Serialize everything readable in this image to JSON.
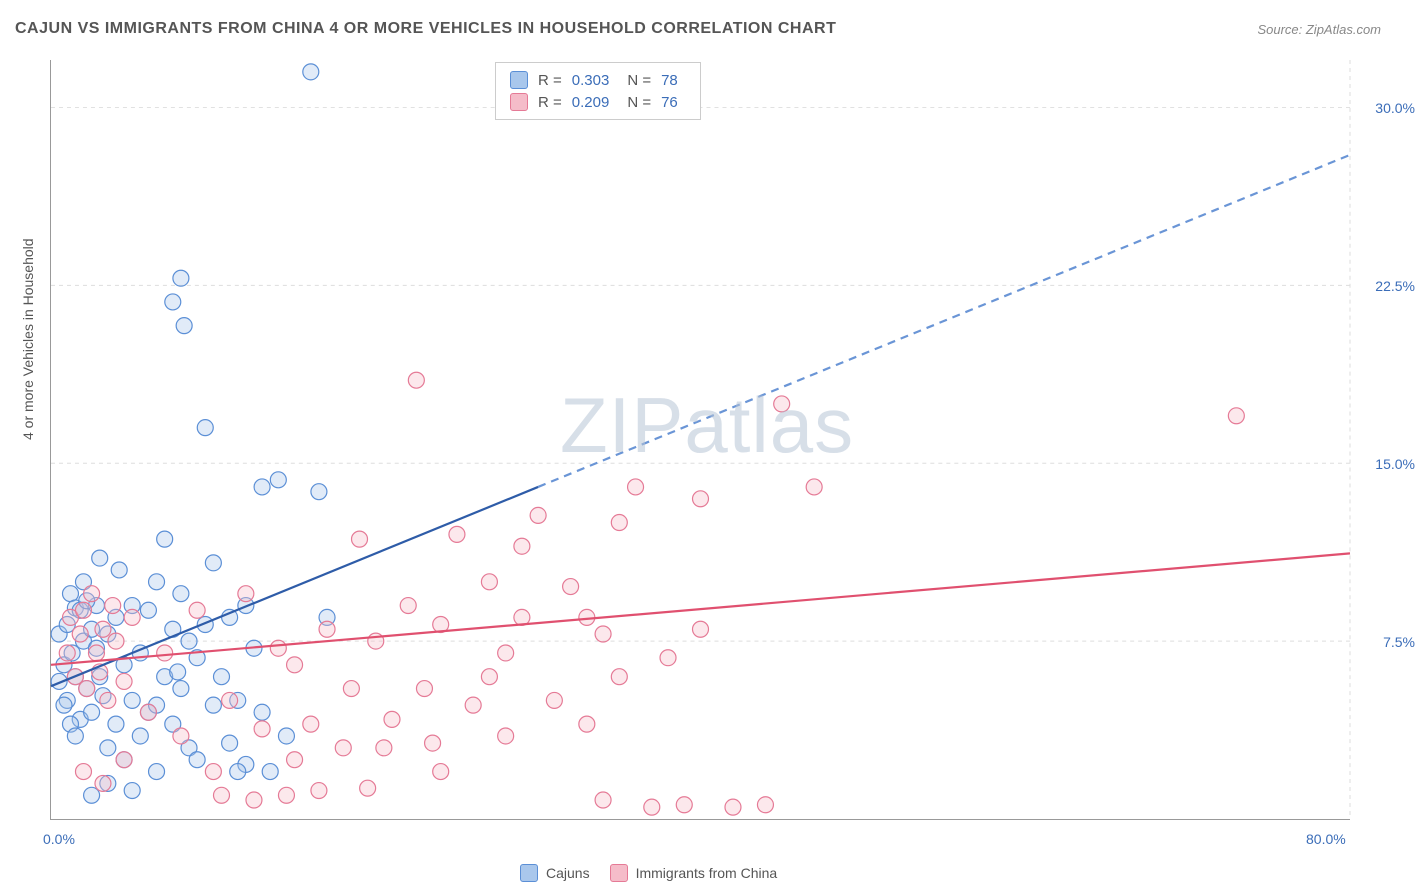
{
  "title": "CAJUN VS IMMIGRANTS FROM CHINA 4 OR MORE VEHICLES IN HOUSEHOLD CORRELATION CHART",
  "source": "Source: ZipAtlas.com",
  "watermark": "ZIPatlas",
  "y_axis_label": "4 or more Vehicles in Household",
  "chart": {
    "type": "scatter",
    "xlim": [
      0,
      80
    ],
    "ylim": [
      0,
      32
    ],
    "x_ticks": [
      {
        "v": 0,
        "l": "0.0%"
      },
      {
        "v": 80,
        "l": "80.0%"
      }
    ],
    "y_ticks": [
      {
        "v": 7.5,
        "l": "7.5%"
      },
      {
        "v": 15,
        "l": "15.0%"
      },
      {
        "v": 22.5,
        "l": "22.5%"
      },
      {
        "v": 30,
        "l": "30.0%"
      }
    ],
    "grid_v_at": [
      80
    ],
    "grid_h_at": [
      7.5,
      15,
      22.5,
      30
    ],
    "background_color": "#ffffff",
    "grid_color": "#dddddd",
    "axis_color": "#999999",
    "tick_label_color": "#3b6db8",
    "marker_radius": 8,
    "marker_stroke_width": 1.2,
    "marker_fill_opacity": 0.35,
    "series": [
      {
        "name": "Cajuns",
        "color_fill": "#a9c7ec",
        "color_stroke": "#5b8fd6",
        "R": "0.303",
        "N": "78",
        "trend": {
          "x1": 0,
          "y1": 5.6,
          "x2": 30,
          "y2": 14.0,
          "x2_ext": 80,
          "y2_ext": 28.0,
          "solid_color": "#2e5ca8",
          "dash_color": "#6a95d6",
          "width": 2.2
        },
        "points": [
          [
            0.5,
            7.8
          ],
          [
            0.8,
            6.5
          ],
          [
            1.0,
            8.2
          ],
          [
            1.0,
            5.0
          ],
          [
            1.2,
            9.5
          ],
          [
            1.3,
            7.0
          ],
          [
            1.5,
            6.0
          ],
          [
            1.5,
            8.9
          ],
          [
            1.8,
            4.2
          ],
          [
            2.0,
            7.5
          ],
          [
            2.0,
            10.0
          ],
          [
            2.2,
            5.5
          ],
          [
            2.5,
            8.0
          ],
          [
            2.5,
            4.5
          ],
          [
            2.8,
            9.0
          ],
          [
            3.0,
            6.0
          ],
          [
            3.0,
            11.0
          ],
          [
            3.2,
            5.2
          ],
          [
            3.5,
            7.8
          ],
          [
            3.5,
            3.0
          ],
          [
            4.0,
            8.5
          ],
          [
            4.0,
            4.0
          ],
          [
            4.2,
            10.5
          ],
          [
            4.5,
            6.5
          ],
          [
            4.5,
            2.5
          ],
          [
            5.0,
            9.0
          ],
          [
            5.0,
            5.0
          ],
          [
            5.5,
            7.0
          ],
          [
            5.5,
            3.5
          ],
          [
            6.0,
            8.8
          ],
          [
            6.0,
            4.5
          ],
          [
            6.5,
            10.0
          ],
          [
            6.5,
            2.0
          ],
          [
            7.0,
            6.0
          ],
          [
            7.0,
            11.8
          ],
          [
            7.5,
            4.0
          ],
          [
            7.5,
            8.0
          ],
          [
            8.0,
            5.5
          ],
          [
            8.0,
            9.5
          ],
          [
            8.5,
            3.0
          ],
          [
            8.5,
            7.5
          ],
          [
            9.0,
            6.8
          ],
          [
            9.0,
            2.5
          ],
          [
            9.5,
            8.2
          ],
          [
            10.0,
            4.8
          ],
          [
            10.0,
            10.8
          ],
          [
            10.5,
            6.0
          ],
          [
            11.0,
            3.2
          ],
          [
            11.0,
            8.5
          ],
          [
            11.5,
            5.0
          ],
          [
            12.0,
            9.0
          ],
          [
            12.0,
            2.3
          ],
          [
            12.5,
            7.2
          ],
          [
            13.0,
            4.5
          ],
          [
            13.0,
            14.0
          ],
          [
            7.5,
            21.8
          ],
          [
            8.0,
            22.8
          ],
          [
            8.2,
            20.8
          ],
          [
            9.5,
            16.5
          ],
          [
            14.0,
            14.3
          ],
          [
            16.0,
            31.5
          ],
          [
            16.5,
            13.8
          ],
          [
            17.0,
            8.5
          ],
          [
            3.5,
            1.5
          ],
          [
            5.0,
            1.2
          ],
          [
            2.5,
            1.0
          ],
          [
            1.8,
            8.8
          ],
          [
            2.2,
            9.2
          ],
          [
            2.8,
            7.2
          ],
          [
            0.8,
            4.8
          ],
          [
            1.2,
            4.0
          ],
          [
            0.5,
            5.8
          ],
          [
            1.5,
            3.5
          ],
          [
            11.5,
            2.0
          ],
          [
            13.5,
            2.0
          ],
          [
            14.5,
            3.5
          ],
          [
            6.5,
            4.8
          ],
          [
            7.8,
            6.2
          ]
        ]
      },
      {
        "name": "Immigrants from China",
        "color_fill": "#f5bcc9",
        "color_stroke": "#e57a96",
        "R": "0.209",
        "N": "76",
        "trend": {
          "x1": 0,
          "y1": 6.5,
          "x2": 80,
          "y2": 11.2,
          "solid_color": "#e0506f",
          "width": 2.2
        },
        "points": [
          [
            1.0,
            7.0
          ],
          [
            1.2,
            8.5
          ],
          [
            1.5,
            6.0
          ],
          [
            1.8,
            7.8
          ],
          [
            2.0,
            8.8
          ],
          [
            2.2,
            5.5
          ],
          [
            2.5,
            9.5
          ],
          [
            2.8,
            7.0
          ],
          [
            3.0,
            6.2
          ],
          [
            3.2,
            8.0
          ],
          [
            3.5,
            5.0
          ],
          [
            3.8,
            9.0
          ],
          [
            4.0,
            7.5
          ],
          [
            4.5,
            5.8
          ],
          [
            5.0,
            8.5
          ],
          [
            6.0,
            4.5
          ],
          [
            7.0,
            7.0
          ],
          [
            8.0,
            3.5
          ],
          [
            9.0,
            8.8
          ],
          [
            10.0,
            2.0
          ],
          [
            11.0,
            5.0
          ],
          [
            12.0,
            9.5
          ],
          [
            13.0,
            3.8
          ],
          [
            14.0,
            7.2
          ],
          [
            15.0,
            2.5
          ],
          [
            15.0,
            6.5
          ],
          [
            16.0,
            4.0
          ],
          [
            17.0,
            8.0
          ],
          [
            18.0,
            3.0
          ],
          [
            19.0,
            11.8
          ],
          [
            20.0,
            7.5
          ],
          [
            21.0,
            4.2
          ],
          [
            22.0,
            9.0
          ],
          [
            22.5,
            18.5
          ],
          [
            23.0,
            5.5
          ],
          [
            24.0,
            8.2
          ],
          [
            24.0,
            2.0
          ],
          [
            25.0,
            12.0
          ],
          [
            26.0,
            4.8
          ],
          [
            27.0,
            10.0
          ],
          [
            27.0,
            6.0
          ],
          [
            28.0,
            3.5
          ],
          [
            29.0,
            8.5
          ],
          [
            29.0,
            11.5
          ],
          [
            30.0,
            12.8
          ],
          [
            31.0,
            5.0
          ],
          [
            32.0,
            9.8
          ],
          [
            33.0,
            4.0
          ],
          [
            34.0,
            7.8
          ],
          [
            34.0,
            0.8
          ],
          [
            35.0,
            12.5
          ],
          [
            36.0,
            14.0
          ],
          [
            37.0,
            0.5
          ],
          [
            38.0,
            6.8
          ],
          [
            39.0,
            0.6
          ],
          [
            40.0,
            8.0
          ],
          [
            42.0,
            0.5
          ],
          [
            44.0,
            0.6
          ],
          [
            45.0,
            17.5
          ],
          [
            47.0,
            14.0
          ],
          [
            40.0,
            13.5
          ],
          [
            35.0,
            6.0
          ],
          [
            33.0,
            8.5
          ],
          [
            28.0,
            7.0
          ],
          [
            18.5,
            5.5
          ],
          [
            20.5,
            3.0
          ],
          [
            23.5,
            3.2
          ],
          [
            14.5,
            1.0
          ],
          [
            16.5,
            1.2
          ],
          [
            19.5,
            1.3
          ],
          [
            12.5,
            0.8
          ],
          [
            10.5,
            1.0
          ],
          [
            73.0,
            17.0
          ],
          [
            4.5,
            2.5
          ],
          [
            3.2,
            1.5
          ],
          [
            2.0,
            2.0
          ]
        ]
      }
    ]
  },
  "legend": {
    "series1_label": "Cajuns",
    "series2_label": "Immigrants from China"
  }
}
